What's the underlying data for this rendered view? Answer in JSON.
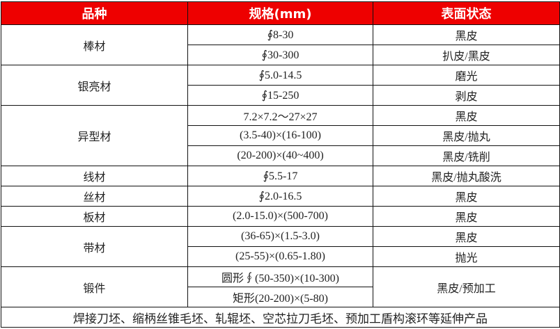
{
  "header": [
    "品种",
    "规格(mm)",
    "表面状态"
  ],
  "groups": [
    {
      "name": "棒材",
      "rows": [
        [
          "∮8-30",
          "黑皮"
        ],
        [
          "∮30-300",
          "扒皮/黑皮"
        ]
      ]
    },
    {
      "name": "银亮材",
      "rows": [
        [
          "∮5.0-14.5",
          "磨光"
        ],
        [
          "∮15-250",
          "剥皮"
        ]
      ]
    },
    {
      "name": "异型材",
      "rows": [
        [
          "7.2×7.2～27×27",
          "黑皮"
        ],
        [
          "(3.5-40)×(16-100)",
          "黑皮/抛丸"
        ],
        [
          "(20-200)×(40~400)",
          "黑皮/铣削"
        ]
      ]
    },
    {
      "name": "线材",
      "rows": [
        [
          "∮5.5-17",
          "黑皮/抛丸酸洗"
        ]
      ]
    },
    {
      "name": "丝材",
      "rows": [
        [
          "∮2.0-16.5",
          "黑皮"
        ]
      ]
    },
    {
      "name": "板材",
      "rows": [
        [
          "(2.0-15.0)×(500-700)",
          "黑皮"
        ]
      ]
    },
    {
      "name": "带材",
      "rows": [
        [
          "(36-65)×(1.5-3.0)",
          "黑皮"
        ],
        [
          "(25-55)×(0.65-1.80)",
          "抛光"
        ]
      ]
    },
    {
      "name": "锻件",
      "rows": [
        [
          "圆形∮(50-350)×(10-300)",
          "黑皮/预加工"
        ],
        [
          "矩形(20-200)×(5-80)",
          null
        ]
      ],
      "merged_surface": true
    }
  ],
  "footer": "焊接刀坯、缩柄丝锥毛坯、轧辊坯、空芯拉刀毛坯、预加工盾构滚环等延伸产品",
  "colors": {
    "header_bg": "#ee0000",
    "header_text": "#ffffff"
  }
}
